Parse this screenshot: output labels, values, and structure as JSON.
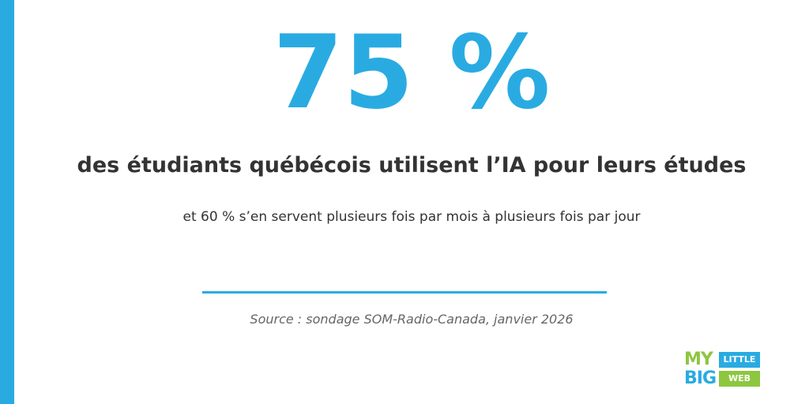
{
  "stat": "75 %",
  "headline": "des étudiants québécois utilisent l’IA pour leurs études",
  "subline": "et 60 % s’en servent plusieurs fois par mois à plusieurs fois par jour",
  "source": "Source : sondage SOM-Radio-Canada, janvier 2026",
  "logo": {
    "my": "MY",
    "big": "BIG",
    "little": "LITTLE",
    "web": "WEB"
  }
}
